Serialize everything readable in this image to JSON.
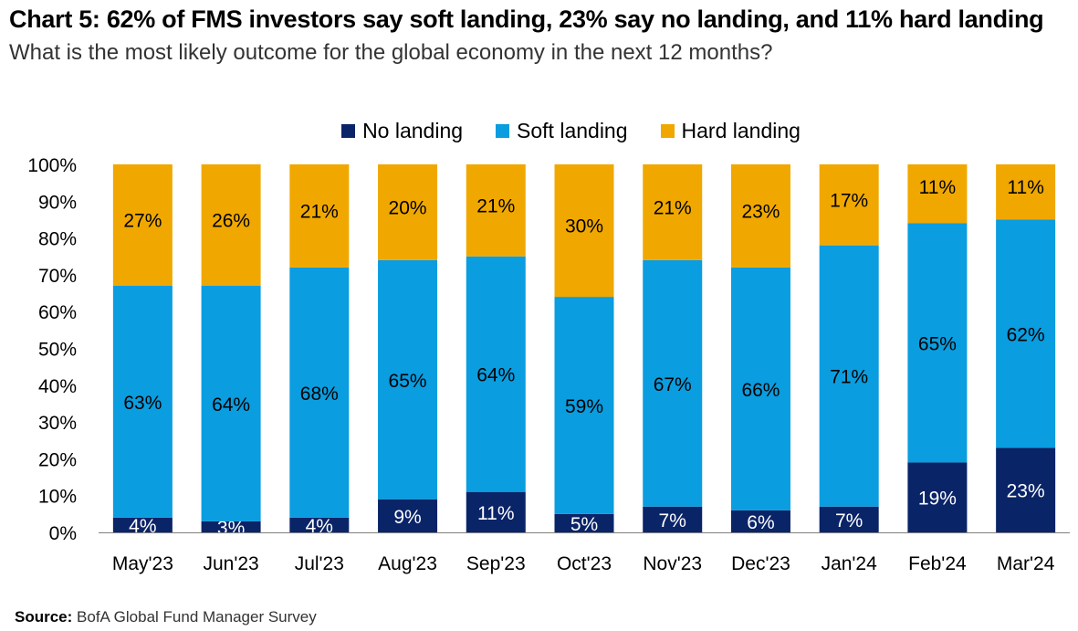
{
  "title": "Chart 5: 62% of FMS investors say soft landing, 23% say no landing, and 11% hard landing",
  "subtitle": "What is the most likely outcome for the global economy in the next 12 months?",
  "source_label": "Source:",
  "source_text": "BofA Global Fund Manager Survey",
  "colors": {
    "no_landing": "#0a2468",
    "soft_landing": "#0a9de0",
    "hard_landing": "#f0a800"
  },
  "chart_data": {
    "type": "bar",
    "stacked": true,
    "categories": [
      "May'23",
      "Jun'23",
      "Jul'23",
      "Aug'23",
      "Sep'23",
      "Oct'23",
      "Nov'23",
      "Dec'23",
      "Jan'24",
      "Feb'24",
      "Mar'24"
    ],
    "series": [
      {
        "name": "No landing",
        "values": [
          4,
          3,
          4,
          9,
          11,
          5,
          7,
          6,
          7,
          19,
          23
        ]
      },
      {
        "name": "Soft landing",
        "values": [
          63,
          64,
          68,
          65,
          64,
          59,
          67,
          66,
          71,
          65,
          62
        ]
      },
      {
        "name": "Hard landing",
        "values": [
          27,
          26,
          21,
          20,
          21,
          30,
          21,
          23,
          17,
          11,
          11
        ]
      }
    ],
    "y_ticks": [
      "0%",
      "10%",
      "20%",
      "30%",
      "40%",
      "50%",
      "60%",
      "70%",
      "80%",
      "90%",
      "100%"
    ],
    "ylim": [
      0,
      100
    ],
    "legend_position": "top-center"
  }
}
